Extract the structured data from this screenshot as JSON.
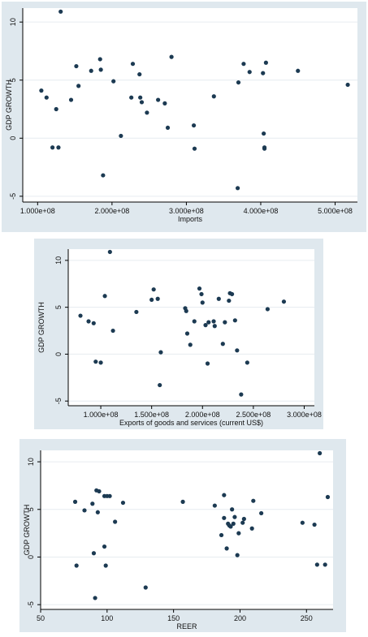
{
  "chart_data": [
    {
      "type": "scatter",
      "title": "",
      "xlabel": "Imports",
      "ylabel": "GDP GROWTH",
      "xlim": [
        80000000,
        530000000
      ],
      "ylim": [
        -5.5,
        11.2
      ],
      "xticks": [
        100000000,
        200000000,
        300000000,
        400000000,
        500000000
      ],
      "xtick_labels": [
        "1.000e+08",
        "2.000e+08",
        "3.000e+08",
        "4.000e+08",
        "5.000e+08"
      ],
      "yticks": [
        -5,
        0,
        5,
        10
      ],
      "ytick_labels": [
        "-5",
        "0",
        "5",
        "10"
      ],
      "grid": true,
      "series": [
        {
          "color": "#1c3a52",
          "x": [
            105000000,
            112000000,
            120000000,
            125000000,
            128000000,
            131000000,
            145000000,
            152000000,
            155000000,
            172000000,
            184000000,
            185000000,
            188000000,
            202000000,
            212000000,
            226000000,
            228000000,
            237000000,
            238000000,
            240000000,
            247000000,
            262000000,
            271000000,
            275000000,
            280000000,
            310000000,
            311000000,
            337000000,
            369000000,
            370000000,
            377000000,
            385000000,
            403000000,
            404000000,
            405000000,
            405000000,
            407000000,
            450000000,
            517000000
          ],
          "y": [
            4.1,
            3.5,
            -0.8,
            2.5,
            -0.8,
            10.9,
            3.3,
            6.2,
            4.5,
            5.8,
            6.8,
            5.9,
            -3.2,
            4.9,
            0.2,
            3.5,
            6.4,
            5.5,
            3.5,
            3.1,
            2.2,
            3.3,
            3.0,
            0.9,
            7.0,
            1.1,
            -0.9,
            3.6,
            -4.3,
            4.8,
            6.4,
            5.7,
            5.6,
            0.4,
            -0.9,
            -0.8,
            6.5,
            5.8,
            4.6
          ]
        }
      ]
    },
    {
      "type": "scatter",
      "title": "",
      "xlabel": "Exports of goods and services (current US$)",
      "ylabel": "GDP GROWTH",
      "xlim": [
        68000000,
        310000000
      ],
      "ylim": [
        -5.5,
        11.2
      ],
      "xticks": [
        100000000,
        150000000,
        200000000,
        250000000,
        300000000
      ],
      "xtick_labels": [
        "1.000e+08",
        "1.500e+08",
        "2.000e+08",
        "2.500e+08",
        "3.000e+08"
      ],
      "yticks": [
        -5,
        0,
        5,
        10
      ],
      "ytick_labels": [
        "-5",
        "0",
        "5",
        "10"
      ],
      "grid": true,
      "series": [
        {
          "color": "#1c3a52",
          "x": [
            80000000,
            88000000,
            93000000,
            95000000,
            100000000,
            104000000,
            109000000,
            112000000,
            135000000,
            150000000,
            152000000,
            156000000,
            158000000,
            159000000,
            183000000,
            184000000,
            185000000,
            188000000,
            192000000,
            197000000,
            199000000,
            200000000,
            203000000,
            205000000,
            206000000,
            211000000,
            212000000,
            216000000,
            220000000,
            222000000,
            226000000,
            227000000,
            229000000,
            232000000,
            234000000,
            238000000,
            244000000,
            264000000,
            280000000
          ],
          "y": [
            4.1,
            3.5,
            3.3,
            -0.8,
            -0.9,
            6.2,
            10.9,
            2.5,
            4.5,
            5.8,
            6.9,
            5.9,
            -3.3,
            0.2,
            4.9,
            4.6,
            2.2,
            1.0,
            3.5,
            7.0,
            6.4,
            5.5,
            3.1,
            -1.0,
            3.4,
            3.5,
            3.0,
            5.9,
            1.1,
            3.4,
            5.7,
            6.5,
            6.4,
            3.6,
            0.4,
            -4.3,
            -0.9,
            4.8,
            5.6
          ]
        }
      ]
    },
    {
      "type": "scatter",
      "title": "",
      "xlabel": "REER",
      "ylabel": "GDP GROWTH",
      "xlim": [
        50,
        270
      ],
      "ylim": [
        -5.5,
        11.2
      ],
      "xticks": [
        50,
        100,
        150,
        200,
        250
      ],
      "xtick_labels": [
        "50",
        "100",
        "150",
        "200",
        "250"
      ],
      "yticks": [
        -5,
        0,
        5,
        10
      ],
      "ytick_labels": [
        "-5",
        "0",
        "5",
        "10"
      ],
      "grid": true,
      "series": [
        {
          "color": "#1c3a52",
          "x": [
            76,
            77,
            83,
            89,
            90,
            91,
            92,
            93,
            94,
            98,
            98,
            99,
            100,
            102,
            106,
            112,
            129,
            157,
            181,
            186,
            188,
            188,
            190,
            191,
            192,
            193,
            194,
            195,
            196,
            198,
            199,
            202,
            203,
            209,
            210,
            216,
            247,
            256,
            258,
            260,
            264,
            266
          ],
          "y": [
            5.8,
            -0.9,
            4.9,
            5.6,
            0.4,
            -4.3,
            7.0,
            4.7,
            6.9,
            1.1,
            6.4,
            -0.9,
            6.4,
            6.4,
            3.7,
            5.7,
            -3.2,
            5.8,
            5.4,
            2.3,
            6.5,
            4.1,
            0.9,
            3.5,
            3.3,
            3.2,
            5.0,
            3.5,
            4.2,
            0.2,
            2.5,
            3.6,
            4.0,
            3.0,
            5.9,
            4.6,
            3.6,
            3.4,
            -0.8,
            10.9,
            -0.8,
            6.3
          ]
        }
      ]
    }
  ]
}
